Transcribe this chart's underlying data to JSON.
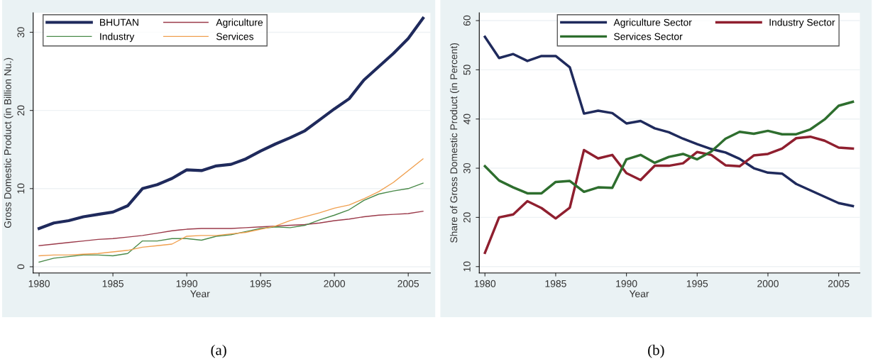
{
  "chart_data": [
    {
      "type": "line",
      "xlabel": "Year",
      "ylabel": "Gross Domestic Product (in Billion Nu.)",
      "annotations": [
        "(a)"
      ],
      "x": [
        1980,
        1981,
        1982,
        1983,
        1984,
        1985,
        1986,
        1987,
        1988,
        1989,
        1990,
        1991,
        1992,
        1993,
        1994,
        1995,
        1996,
        1997,
        1998,
        1999,
        2000,
        2001,
        2002,
        2003,
        2004,
        2005,
        2006
      ],
      "series": [
        {
          "name": "BHUTAN",
          "color": "#1f2a5c",
          "values": [
            4.9,
            5.6,
            5.9,
            6.4,
            6.7,
            7.0,
            7.8,
            10.0,
            10.5,
            11.3,
            12.4,
            12.3,
            12.9,
            13.1,
            13.8,
            14.8,
            15.7,
            16.5,
            17.4,
            18.8,
            20.2,
            21.5,
            23.9,
            25.6,
            27.3,
            29.2,
            31.8
          ]
        },
        {
          "name": "Agriculture",
          "color": "#9b3a4a",
          "values": [
            2.7,
            2.9,
            3.1,
            3.3,
            3.5,
            3.6,
            3.8,
            4.0,
            4.3,
            4.6,
            4.8,
            4.9,
            4.9,
            4.9,
            5.0,
            5.1,
            5.2,
            5.3,
            5.4,
            5.6,
            5.9,
            6.1,
            6.4,
            6.6,
            6.7,
            6.8,
            7.1
          ]
        },
        {
          "name": "Industry",
          "color": "#4a8a4a",
          "values": [
            0.6,
            1.1,
            1.3,
            1.5,
            1.5,
            1.4,
            1.7,
            3.3,
            3.3,
            3.6,
            3.6,
            3.4,
            3.9,
            4.1,
            4.5,
            4.9,
            5.1,
            5.0,
            5.3,
            6.0,
            6.6,
            7.3,
            8.5,
            9.3,
            9.7,
            10.0,
            10.7
          ]
        },
        {
          "name": "Services",
          "color": "#f0a050",
          "values": [
            1.4,
            1.5,
            1.5,
            1.6,
            1.7,
            1.9,
            2.1,
            2.5,
            2.7,
            2.9,
            3.9,
            4.0,
            4.0,
            4.2,
            4.4,
            4.8,
            5.2,
            5.9,
            6.4,
            6.9,
            7.5,
            7.9,
            8.7,
            9.6,
            10.8,
            12.3,
            13.8
          ]
        }
      ],
      "xlim": [
        1979.6,
        2006.5
      ],
      "xticks": [
        1980,
        1985,
        1990,
        1995,
        2000,
        2005
      ],
      "ylim": [
        -0.8,
        32.5
      ],
      "yticks": [
        0,
        10,
        20,
        30
      ],
      "grid": "y",
      "legend": "top"
    },
    {
      "type": "line",
      "xlabel": "Year",
      "ylabel": "Share of Gross Domestic Product (in Percent)",
      "annotations": [
        "(b)"
      ],
      "x": [
        1980,
        1981,
        1982,
        1983,
        1984,
        1985,
        1986,
        1987,
        1988,
        1989,
        1990,
        1991,
        1992,
        1993,
        1994,
        1995,
        1996,
        1997,
        1998,
        1999,
        2000,
        2001,
        2002,
        2003,
        2004,
        2005,
        2006
      ],
      "series": [
        {
          "name": "Agriculture Sector",
          "color": "#1f2a5c",
          "values": [
            56.7,
            52.4,
            53.2,
            51.8,
            52.8,
            52.8,
            50.5,
            41.1,
            41.7,
            41.2,
            39.1,
            39.6,
            38.1,
            37.3,
            36.0,
            34.9,
            33.9,
            33.2,
            31.9,
            30.0,
            29.1,
            28.9,
            26.8,
            25.5,
            24.2,
            22.9,
            22.3
          ]
        },
        {
          "name": "Industry Sector",
          "color": "#8f1f2f",
          "values": [
            12.8,
            20.0,
            20.6,
            23.3,
            21.9,
            19.8,
            22.0,
            33.7,
            32.0,
            32.7,
            29.0,
            27.6,
            30.5,
            30.5,
            31.0,
            33.3,
            32.7,
            30.6,
            30.4,
            32.6,
            32.9,
            34.0,
            36.1,
            36.4,
            35.6,
            34.2,
            34.0
          ]
        },
        {
          "name": "Services Sector",
          "color": "#2e6e2e",
          "values": [
            30.4,
            27.5,
            26.1,
            24.9,
            24.9,
            27.2,
            27.4,
            25.2,
            26.1,
            26.0,
            31.8,
            32.7,
            31.1,
            32.3,
            32.9,
            31.8,
            33.4,
            36.0,
            37.4,
            37.0,
            37.6,
            36.9,
            36.9,
            37.9,
            39.9,
            42.7,
            43.5
          ]
        }
      ],
      "xlim": [
        1979.6,
        2006.5
      ],
      "xticks": [
        1980,
        1985,
        1990,
        1995,
        2000,
        2005
      ],
      "ylim": [
        8.7,
        61.6
      ],
      "yticks": [
        10,
        20,
        30,
        40,
        50,
        60
      ],
      "grid": "y",
      "legend": "top"
    }
  ]
}
